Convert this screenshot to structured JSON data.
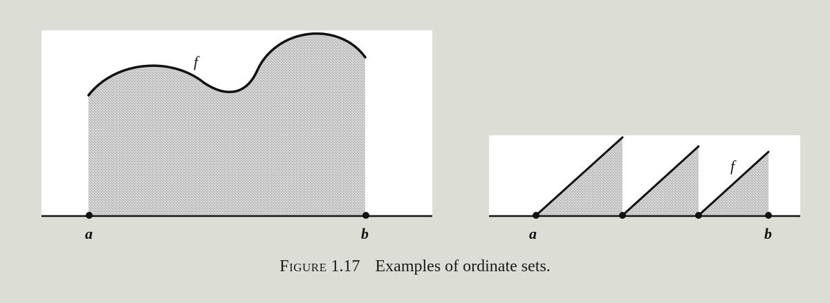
{
  "figure": {
    "left_panel": {
      "function_label": "f",
      "endpoint_a": "a",
      "endpoint_b": "b"
    },
    "right_panel": {
      "function_label": "f",
      "endpoint_a": "a",
      "endpoint_b": "b"
    }
  },
  "caption": {
    "label": "Figure",
    "number": "1.17",
    "text": "Examples of ordinate sets."
  },
  "colors": {
    "background": "#dcddd5",
    "panel": "#ffffff",
    "shading": "#c6c6c6",
    "ink": "#111111"
  }
}
